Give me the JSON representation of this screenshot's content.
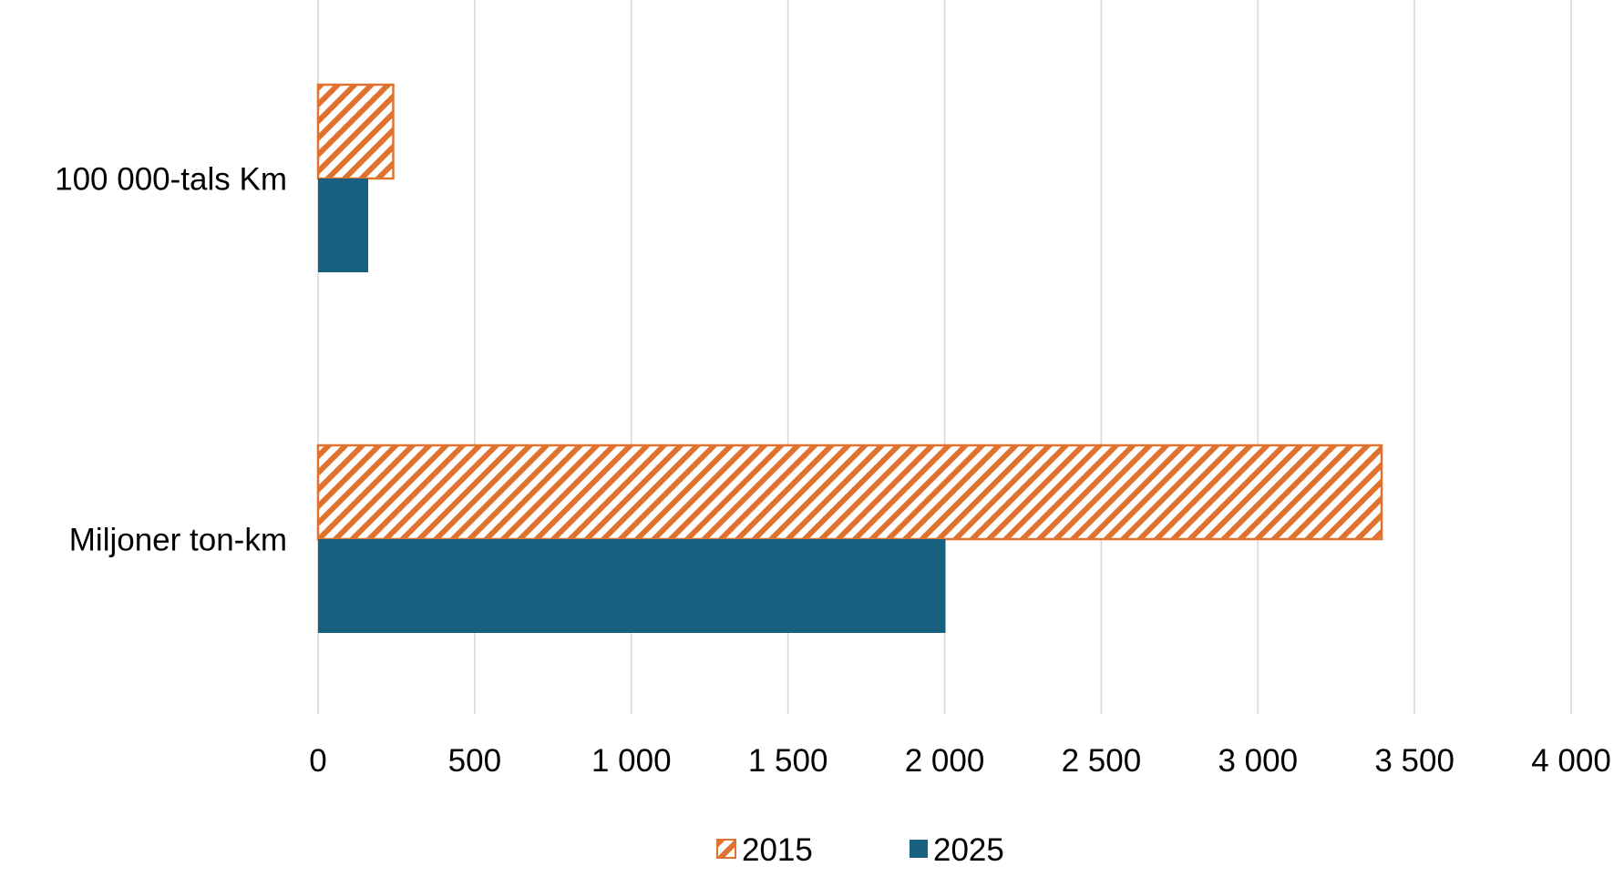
{
  "chart_data": {
    "type": "bar",
    "orientation": "horizontal",
    "title": "",
    "xlabel": "",
    "ylabel": "",
    "categories": [
      "100 000-tals Km",
      "Miljoner ton-km"
    ],
    "series": [
      {
        "name": "2015",
        "values": [
          240,
          3395
        ],
        "color": "#E07230",
        "fill": "diagonal-hatch"
      },
      {
        "name": "2025",
        "values": [
          160,
          2003
        ],
        "color": "#17607F",
        "fill": "solid"
      }
    ],
    "xlim": [
      0,
      4000
    ],
    "xticks": [
      0,
      500,
      1000,
      1500,
      2000,
      2500,
      3000,
      3500,
      4000
    ],
    "xtick_labels": [
      "0",
      "500",
      "1 000",
      "1 500",
      "2 000",
      "2 500",
      "3 000",
      "3 500",
      "4 000"
    ],
    "grid": "vertical",
    "gridline_color": "#D9D9D9",
    "legend_position": "bottom"
  }
}
